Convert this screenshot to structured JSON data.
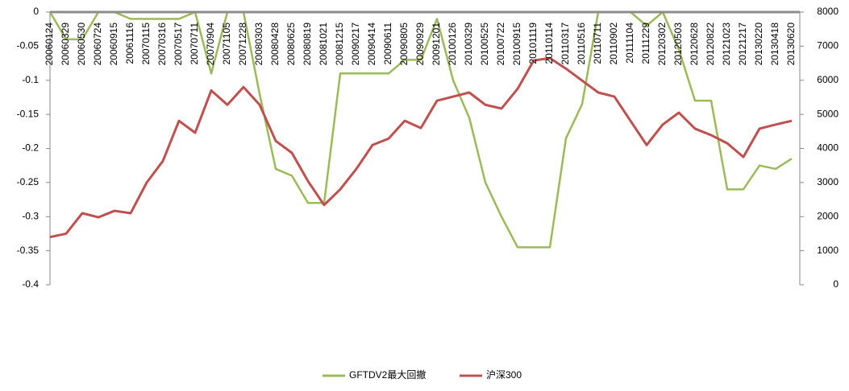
{
  "chart_data": {
    "type": "line",
    "categories": [
      "20060124",
      "20060329",
      "20060530",
      "20060724",
      "20060915",
      "20061116",
      "20070115",
      "20070316",
      "20070517",
      "20070711",
      "20070904",
      "20071105",
      "20071228",
      "20080303",
      "20080428",
      "20080625",
      "20080819",
      "20081021",
      "20081215",
      "20090217",
      "20090414",
      "20090611",
      "20090805",
      "20090929",
      "20091201",
      "20100126",
      "20100329",
      "20100525",
      "20100722",
      "20100915",
      "20101119",
      "20110114",
      "20110317",
      "20110516",
      "20110711",
      "20110902",
      "20111104",
      "20111229",
      "20120302",
      "20120503",
      "20120628",
      "20120822",
      "20121023",
      "20121217",
      "20130220",
      "20130418",
      "20130620"
    ],
    "series": [
      {
        "name": "GFTDV2最大回撤",
        "color": "#9bbb59",
        "axis": "y",
        "values": [
          0,
          -0.04,
          -0.04,
          0,
          0,
          -0.01,
          -0.01,
          -0.01,
          -0.01,
          0,
          -0.09,
          0,
          0,
          -0.12,
          -0.23,
          -0.24,
          -0.28,
          -0.28,
          -0.09,
          -0.09,
          -0.09,
          -0.09,
          -0.07,
          -0.07,
          -0.01,
          -0.1,
          -0.155,
          -0.25,
          -0.3,
          -0.345,
          -0.345,
          -0.345,
          -0.185,
          -0.135,
          0,
          0,
          0,
          -0.02,
          0,
          -0.055,
          -0.13,
          -0.13,
          -0.26,
          -0.26,
          -0.225,
          -0.23,
          -0.215
        ]
      },
      {
        "name": "沪深300",
        "color": "#c0504d",
        "axis": "y2",
        "values": [
          1400,
          1500,
          2100,
          1980,
          2170,
          2100,
          3000,
          3630,
          4810,
          4460,
          5700,
          5280,
          5800,
          5280,
          4220,
          3870,
          3040,
          2340,
          2800,
          3400,
          4100,
          4290,
          4810,
          4600,
          5400,
          5520,
          5640,
          5280,
          5170,
          5750,
          6580,
          6650,
          6340,
          5990,
          5640,
          5520,
          4810,
          4100,
          4700,
          5050,
          4580,
          4390,
          4150,
          3750,
          4580,
          4700,
          4810
        ]
      }
    ],
    "ylim": [
      -0.4,
      0
    ],
    "yticks": [
      0,
      -0.05,
      -0.1,
      -0.15,
      -0.2,
      -0.25,
      -0.3,
      -0.35,
      -0.4
    ],
    "y2lim": [
      0,
      8000
    ],
    "y2ticks": [
      0,
      1000,
      2000,
      3000,
      4000,
      5000,
      6000,
      7000,
      8000
    ],
    "legend": "bottom"
  }
}
